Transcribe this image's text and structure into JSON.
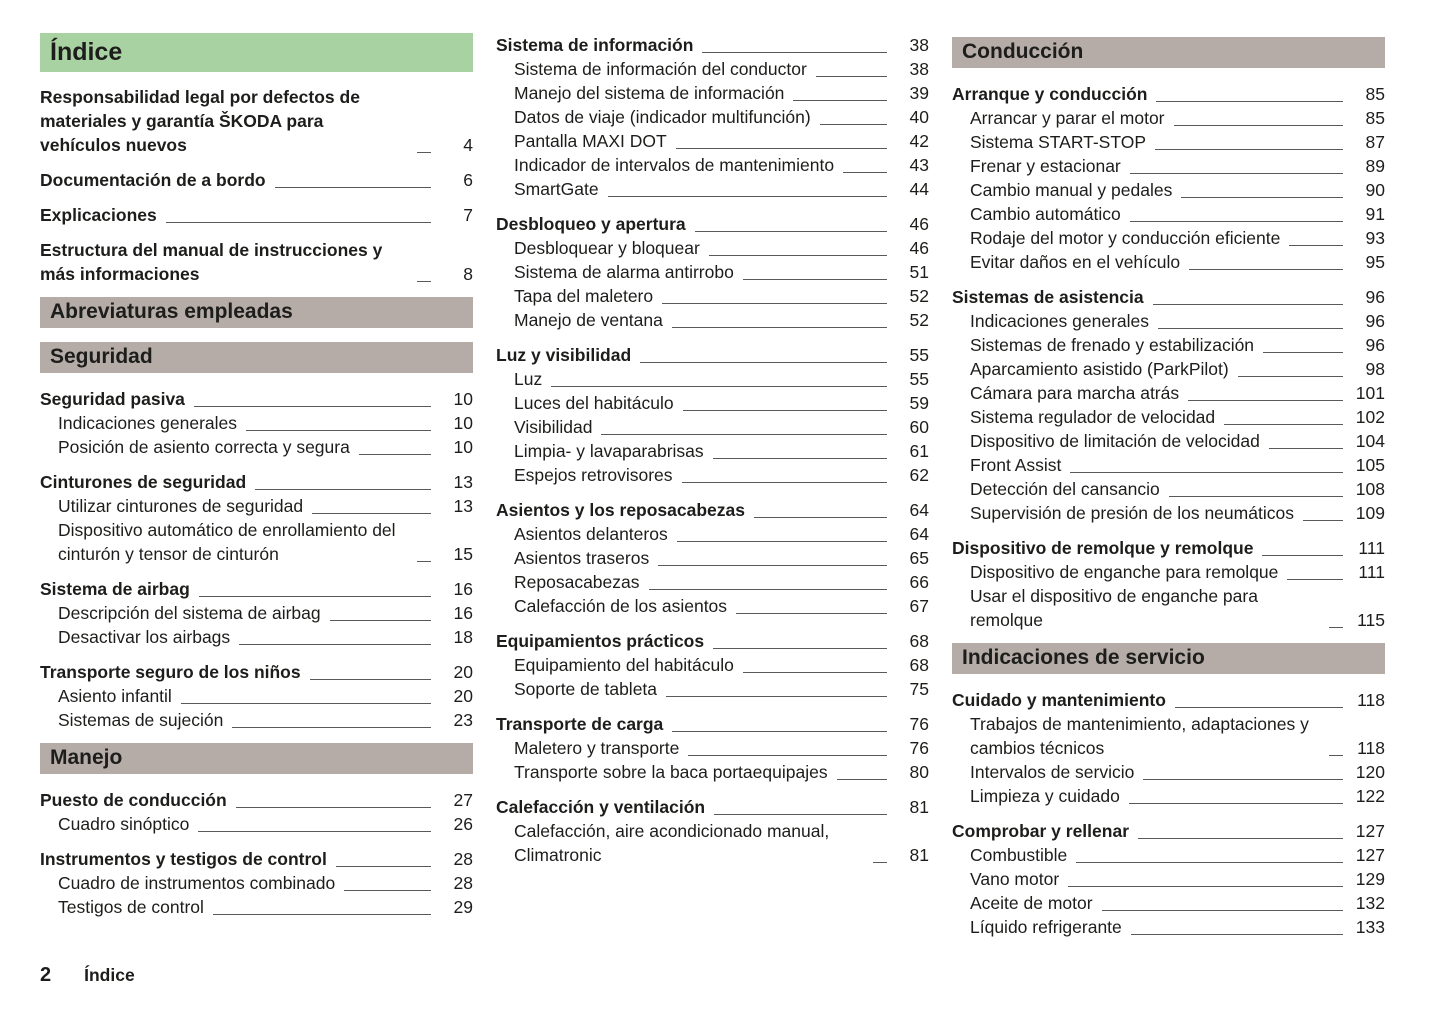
{
  "document": {
    "title": "Índice",
    "footer": {
      "page_number": "2",
      "label": "Índice"
    },
    "colors": {
      "title_header_bg": "#a9d2a3",
      "section_header_bg": "#b5aca7",
      "text": "#1d1d1b",
      "leader": "#5a5a59"
    }
  },
  "toc_columns": [
    {
      "blocks": [
        {
          "type": "title",
          "text": "Índice"
        },
        {
          "type": "group",
          "entries": [
            {
              "label": "Responsabilidad legal por defectos de materiales y garantía ŠKODA para vehículos nuevos",
              "page": "4"
            }
          ]
        },
        {
          "type": "group",
          "entries": [
            {
              "label": "Documentación de a bordo",
              "page": "6"
            }
          ]
        },
        {
          "type": "group",
          "entries": [
            {
              "label": "Explicaciones",
              "page": "7"
            }
          ]
        },
        {
          "type": "group",
          "entries": [
            {
              "label": "Estructura del manual de instrucciones y más informaciones",
              "page": "8"
            }
          ]
        },
        {
          "type": "section",
          "text": "Abreviaturas empleadas"
        },
        {
          "type": "section",
          "text": "Seguridad"
        },
        {
          "type": "group",
          "entries": [
            {
              "label": "Seguridad pasiva",
              "page": "10"
            },
            {
              "label": "Indicaciones generales",
              "page": "10"
            },
            {
              "label": "Posición de asiento correcta y segura",
              "page": "10"
            }
          ]
        },
        {
          "type": "group",
          "entries": [
            {
              "label": "Cinturones de seguridad",
              "page": "13"
            },
            {
              "label": "Utilizar cinturones de seguridad",
              "page": "13"
            },
            {
              "label": "Dispositivo automático de enrollamiento del cinturón y tensor de cinturón",
              "page": "15"
            }
          ]
        },
        {
          "type": "group",
          "entries": [
            {
              "label": "Sistema de airbag",
              "page": "16"
            },
            {
              "label": "Descripción del sistema de airbag",
              "page": "16"
            },
            {
              "label": "Desactivar los airbags",
              "page": "18"
            }
          ]
        },
        {
          "type": "group",
          "entries": [
            {
              "label": "Transporte seguro de los niños",
              "page": "20"
            },
            {
              "label": "Asiento infantil",
              "page": "20"
            },
            {
              "label": "Sistemas de sujeción",
              "page": "23"
            }
          ]
        },
        {
          "type": "section",
          "text": "Manejo"
        },
        {
          "type": "group",
          "entries": [
            {
              "label": "Puesto de conducción",
              "page": "27"
            },
            {
              "label": "Cuadro sinóptico",
              "page": "26"
            }
          ]
        },
        {
          "type": "group",
          "entries": [
            {
              "label": "Instrumentos y testigos de control",
              "page": "28"
            },
            {
              "label": "Cuadro de instrumentos combinado",
              "page": "28"
            },
            {
              "label": "Testigos de control",
              "page": "29"
            }
          ]
        }
      ]
    },
    {
      "blocks": [
        {
          "type": "group",
          "entries": [
            {
              "label": "Sistema de información",
              "page": "38"
            },
            {
              "label": "Sistema de información del conductor",
              "page": "38"
            },
            {
              "label": "Manejo del sistema de información",
              "page": "39"
            },
            {
              "label": "Datos de viaje (indicador multifunción)",
              "page": "40"
            },
            {
              "label": "Pantalla MAXI DOT",
              "page": "42"
            },
            {
              "label": "Indicador de intervalos de mantenimiento",
              "page": "43"
            },
            {
              "label": "SmartGate",
              "page": "44"
            }
          ]
        },
        {
          "type": "group",
          "entries": [
            {
              "label": "Desbloqueo y apertura",
              "page": "46"
            },
            {
              "label": "Desbloquear y bloquear",
              "page": "46"
            },
            {
              "label": "Sistema de alarma antirrobo",
              "page": "51"
            },
            {
              "label": "Tapa del maletero",
              "page": "52"
            },
            {
              "label": "Manejo de ventana",
              "page": "52"
            }
          ]
        },
        {
          "type": "group",
          "entries": [
            {
              "label": "Luz y visibilidad",
              "page": "55"
            },
            {
              "label": "Luz",
              "page": "55"
            },
            {
              "label": "Luces del habitáculo",
              "page": "59"
            },
            {
              "label": "Visibilidad",
              "page": "60"
            },
            {
              "label": "Limpia- y lavaparabrisas",
              "page": "61"
            },
            {
              "label": "Espejos retrovisores",
              "page": "62"
            }
          ]
        },
        {
          "type": "group",
          "entries": [
            {
              "label": "Asientos y los reposacabezas",
              "page": "64"
            },
            {
              "label": "Asientos delanteros",
              "page": "64"
            },
            {
              "label": "Asientos traseros",
              "page": "65"
            },
            {
              "label": "Reposacabezas",
              "page": "66"
            },
            {
              "label": "Calefacción de los asientos",
              "page": "67"
            }
          ]
        },
        {
          "type": "group",
          "entries": [
            {
              "label": "Equipamientos prácticos",
              "page": "68"
            },
            {
              "label": "Equipamiento del habitáculo",
              "page": "68"
            },
            {
              "label": "Soporte de tableta",
              "page": "75"
            }
          ]
        },
        {
          "type": "group",
          "entries": [
            {
              "label": "Transporte de carga",
              "page": "76"
            },
            {
              "label": "Maletero y transporte",
              "page": "76"
            },
            {
              "label": "Transporte sobre la baca portaequipajes",
              "page": "80"
            }
          ]
        },
        {
          "type": "group",
          "entries": [
            {
              "label": "Calefacción y ventilación",
              "page": "81"
            },
            {
              "label": "Calefacción, aire acondicionado manual, Climatronic",
              "page": "81"
            }
          ]
        }
      ]
    },
    {
      "blocks": [
        {
          "type": "section",
          "text": "Conducción"
        },
        {
          "type": "group",
          "entries": [
            {
              "label": "Arranque y conducción",
              "page": "85"
            },
            {
              "label": "Arrancar y parar el motor",
              "page": "85"
            },
            {
              "label": "Sistema START-STOP",
              "page": "87"
            },
            {
              "label": "Frenar y estacionar",
              "page": "89"
            },
            {
              "label": "Cambio manual y pedales",
              "page": "90"
            },
            {
              "label": "Cambio automático",
              "page": "91"
            },
            {
              "label": "Rodaje del motor y conducción eficiente",
              "page": "93"
            },
            {
              "label": "Evitar daños en el vehículo",
              "page": "95"
            }
          ]
        },
        {
          "type": "group",
          "entries": [
            {
              "label": "Sistemas de asistencia",
              "page": "96"
            },
            {
              "label": "Indicaciones generales",
              "page": "96"
            },
            {
              "label": "Sistemas de frenado y estabilización",
              "page": "96"
            },
            {
              "label": "Aparcamiento asistido (ParkPilot)",
              "page": "98"
            },
            {
              "label": "Cámara para marcha atrás",
              "page": "101"
            },
            {
              "label": "Sistema regulador de velocidad",
              "page": "102"
            },
            {
              "label": "Dispositivo de limitación de velocidad",
              "page": "104"
            },
            {
              "label": "Front Assist",
              "page": "105"
            },
            {
              "label": "Detección del cansancio",
              "page": "108"
            },
            {
              "label": "Supervisión de presión de los neumáticos",
              "page": "109"
            }
          ]
        },
        {
          "type": "group",
          "entries": [
            {
              "label": "Dispositivo de remolque y remolque",
              "page": "111"
            },
            {
              "label": "Dispositivo de enganche para remolque",
              "page": "111"
            },
            {
              "label": "Usar el dispositivo de enganche para remolque",
              "page": "115"
            }
          ]
        },
        {
          "type": "section",
          "text": "Indicaciones de servicio"
        },
        {
          "type": "group",
          "entries": [
            {
              "label": "Cuidado y mantenimiento",
              "page": "118"
            },
            {
              "label": "Trabajos de mantenimiento, adaptaciones y cambios técnicos",
              "page": "118"
            },
            {
              "label": "Intervalos de servicio",
              "page": "120"
            },
            {
              "label": "Limpieza y cuidado",
              "page": "122"
            }
          ]
        },
        {
          "type": "group",
          "entries": [
            {
              "label": "Comprobar y rellenar",
              "page": "127"
            },
            {
              "label": "Combustible",
              "page": "127"
            },
            {
              "label": "Vano motor",
              "page": "129"
            },
            {
              "label": "Aceite de motor",
              "page": "132"
            },
            {
              "label": "Líquido refrigerante",
              "page": "133"
            }
          ]
        }
      ]
    }
  ]
}
